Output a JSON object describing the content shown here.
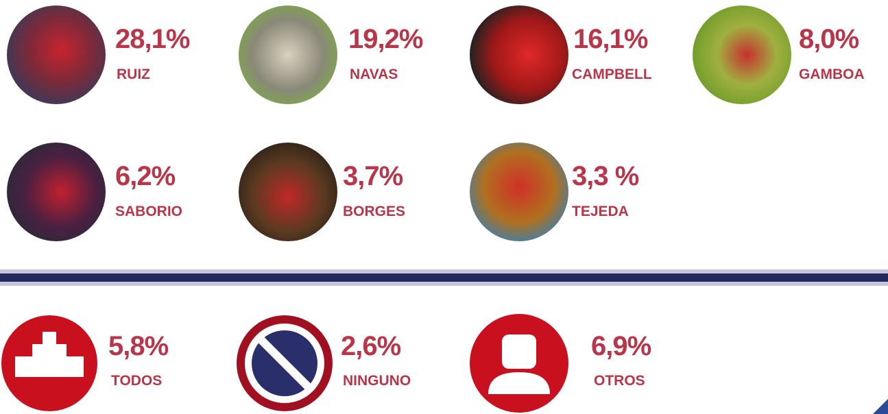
{
  "players": [
    {
      "percent": "28,1%",
      "name": "RUIZ"
    },
    {
      "percent": "19,2%",
      "name": "NAVAS"
    },
    {
      "percent": "16,1%",
      "name": "CAMPBELL"
    },
    {
      "percent": "8,0%",
      "name": "GAMBOA"
    },
    {
      "percent": "6,2%",
      "name": "SABORIO"
    },
    {
      "percent": "3,7%",
      "name": "BORGES"
    },
    {
      "percent": "3,3 %",
      "name": "TEJEDA"
    }
  ],
  "options": [
    {
      "percent": "5,8%",
      "name": "TODOS"
    },
    {
      "percent": "2,6%",
      "name": "NINGUNO"
    },
    {
      "percent": "6,9%",
      "name": "OTROS"
    }
  ]
}
